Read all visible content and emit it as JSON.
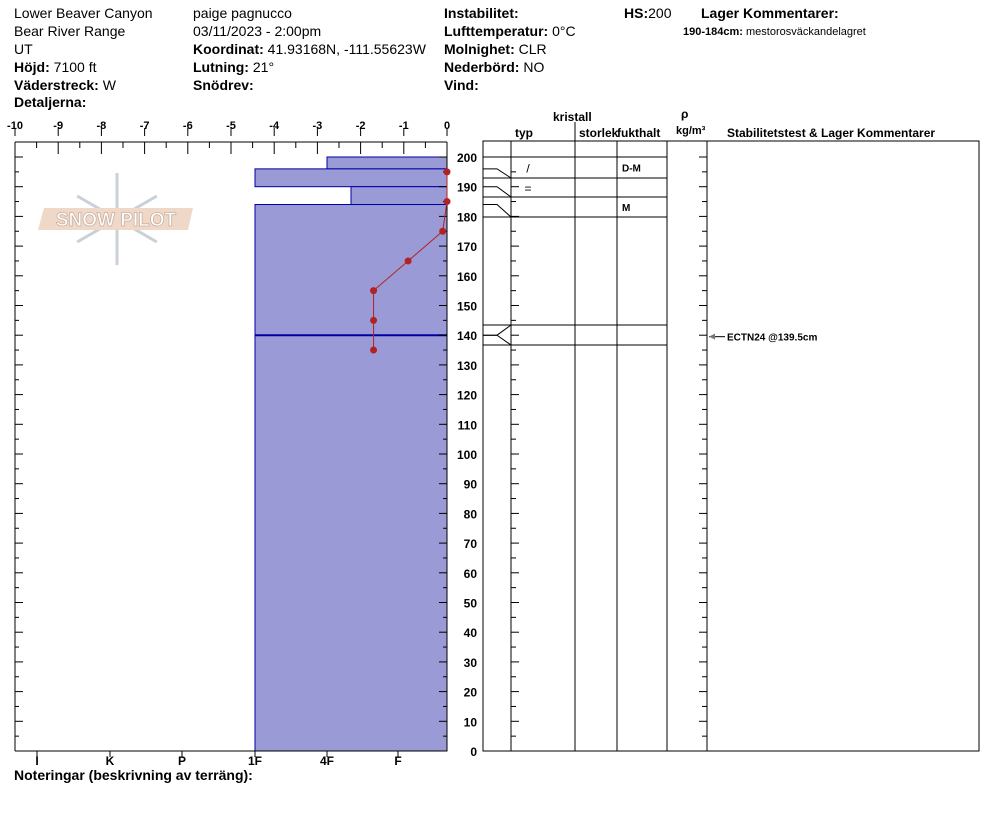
{
  "header": {
    "location": "Lower Beaver Canyon",
    "range": "Bear River Range",
    "state": "UT",
    "elevation_label": "Höjd:",
    "elevation": "7100 ft",
    "aspect_label": "Väderstreck:",
    "aspect": "W",
    "details_label": "Detaljerna:",
    "observer": "paige pagnucco",
    "datetime": "03/11/2023 - 2:00pm",
    "coord_label": "Koordinat:",
    "coord": "41.93168N, -111.55623W",
    "slope_label": "Lutning:",
    "slope": "21°",
    "wind_loading_label": "Snödrev:",
    "instability_label": "Instabilitet:",
    "air_temp_label": "Lufttemperatur:",
    "air_temp": "0°C",
    "sky_label": "Molnighet:",
    "sky": "CLR",
    "precip_label": "Nederbörd:",
    "precip": "NO",
    "wind_label": "Vind:",
    "hs_label": "HS:",
    "hs": "200",
    "layer_comments_label": "Lager Kommentarer:",
    "layer_comment_range": "190-184cm:",
    "layer_comment_text": "mestorosväckandelagret"
  },
  "table_headers": {
    "kristall": "kristall",
    "typ": "typ",
    "storlek": "storlek",
    "fukthalt": "fukthalt",
    "rho": "ρ",
    "density_unit": "kg/m³",
    "stability": "Stabilitetstest & Lager Kommentarer"
  },
  "footer": {
    "notes_label": "Noteringar (beskrivning av terräng):"
  },
  "logo": {
    "text": "SNOW PILOT"
  },
  "colors": {
    "layer_fill": "#9a9ad6",
    "layer_stroke": "#0000a0",
    "temp": "#b22222"
  },
  "chart_data": {
    "type": "snow-profile",
    "temperature_axis": {
      "range": [
        -10,
        0
      ],
      "ticks": [
        "-10",
        "-9",
        "-8",
        "-7",
        "-6",
        "-5",
        "-4",
        "-3",
        "-2",
        "-1",
        "0"
      ]
    },
    "depth_axis": {
      "range": [
        0,
        200
      ],
      "ticks": [
        "0",
        "10",
        "20",
        "30",
        "40",
        "50",
        "60",
        "70",
        "80",
        "90",
        "100",
        "110",
        "120",
        "130",
        "140",
        "150",
        "160",
        "170",
        "180",
        "190",
        "200"
      ]
    },
    "hardness_axis": {
      "ticks": [
        "I",
        "K",
        "P",
        "1F",
        "4F",
        "F"
      ]
    },
    "layers": [
      {
        "top": 200,
        "bottom": 196,
        "hardness": "4F",
        "grain": "/",
        "moisture": "D-M"
      },
      {
        "top": 196,
        "bottom": 190,
        "hardness": "1F",
        "grain": "=",
        "moisture": ""
      },
      {
        "top": 190,
        "bottom": 184,
        "hardness": "4F-",
        "grain": "",
        "moisture": "M"
      },
      {
        "top": 184,
        "bottom": 140,
        "hardness": "1F",
        "grain": "",
        "moisture": ""
      },
      {
        "top": 140,
        "bottom": 0,
        "hardness": "1F",
        "grain": "",
        "moisture": ""
      }
    ],
    "temperature_profile": [
      {
        "depth": 195,
        "temp": 0
      },
      {
        "depth": 185,
        "temp": 0
      },
      {
        "depth": 175,
        "temp": -0.1
      },
      {
        "depth": 165,
        "temp": -0.9
      },
      {
        "depth": 155,
        "temp": -1.7
      },
      {
        "depth": 145,
        "temp": -1.7
      },
      {
        "depth": 135,
        "temp": -1.7
      }
    ],
    "stability_tests": [
      {
        "depth": 139.5,
        "label": "ECTN24 @139.5cm"
      }
    ]
  }
}
